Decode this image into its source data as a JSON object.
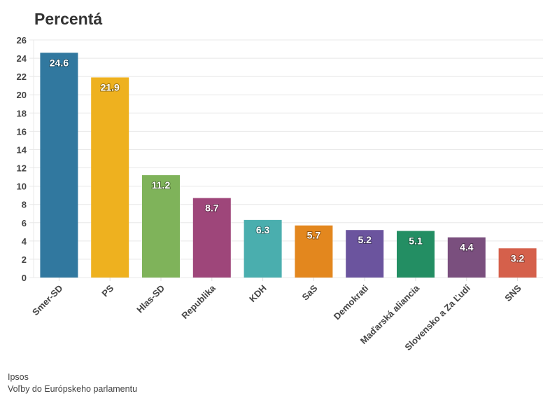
{
  "chart_data": {
    "type": "bar",
    "title": "Percentá",
    "categories": [
      "Smer-SD",
      "PS",
      "Hlas-SD",
      "Republika",
      "KDH",
      "SaS",
      "Demokrati",
      "Maďarská aliancia",
      "Slovensko a Za Ľudí",
      "SNS"
    ],
    "values": [
      24.6,
      21.9,
      11.2,
      8.7,
      6.3,
      5.7,
      5.2,
      5.1,
      4.4,
      3.2
    ],
    "colors": [
      "#31789f",
      "#eeb11f",
      "#7fb35a",
      "#9e467a",
      "#4aaeae",
      "#e3871e",
      "#6b549e",
      "#238e63",
      "#7a4f7e",
      "#d5604b"
    ],
    "ylim": [
      0,
      26
    ],
    "yticks": [
      0,
      2,
      4,
      6,
      8,
      10,
      12,
      14,
      16,
      18,
      20,
      22,
      24,
      26
    ],
    "grid": true,
    "xlabel": "",
    "ylabel": ""
  },
  "footer": {
    "source": "Ipsos",
    "note": "Voľby do Európskeho parlamentu"
  }
}
